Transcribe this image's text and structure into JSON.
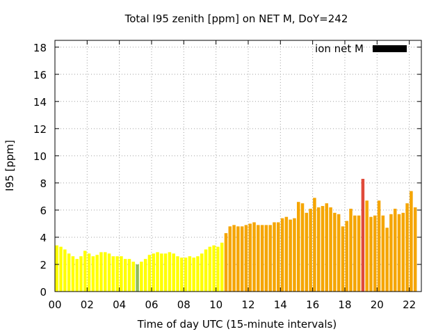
{
  "chart_data": {
    "type": "bar",
    "title": "Total I95 zenith [ppm] on NET M, DoY=242",
    "xlabel": "Time of day UTC (15-minute intervals)",
    "ylabel": "I95 [ppm]",
    "ylim": [
      0,
      18.5
    ],
    "xlim": [
      0,
      22.75
    ],
    "grid": true,
    "legend_position": "top-right",
    "x_ticks": [
      {
        "value": 0,
        "label": "00"
      },
      {
        "value": 2,
        "label": "02"
      },
      {
        "value": 4,
        "label": "04"
      },
      {
        "value": 6,
        "label": "06"
      },
      {
        "value": 8,
        "label": "08"
      },
      {
        "value": 10,
        "label": "10"
      },
      {
        "value": 12,
        "label": "12"
      },
      {
        "value": 14,
        "label": "14"
      },
      {
        "value": 16,
        "label": "16"
      },
      {
        "value": 18,
        "label": "18"
      },
      {
        "value": 20,
        "label": "20"
      },
      {
        "value": 22,
        "label": "22"
      }
    ],
    "y_ticks": [
      {
        "value": 0,
        "label": "0"
      },
      {
        "value": 2,
        "label": "2"
      },
      {
        "value": 4,
        "label": "4"
      },
      {
        "value": 6,
        "label": "6"
      },
      {
        "value": 8,
        "label": "8"
      },
      {
        "value": 10,
        "label": "10"
      },
      {
        "value": 12,
        "label": "12"
      },
      {
        "value": 14,
        "label": "14"
      },
      {
        "value": 16,
        "label": "16"
      },
      {
        "value": 18,
        "label": "18"
      }
    ],
    "interval_hours": 0.25,
    "series": [
      {
        "name": "ion net M",
        "legend_color": "#000000",
        "values": [
          3.4,
          3.3,
          3.1,
          2.8,
          2.6,
          2.4,
          2.6,
          3.0,
          2.8,
          2.6,
          2.7,
          2.9,
          2.9,
          2.8,
          2.6,
          2.6,
          2.6,
          2.4,
          2.4,
          2.2,
          2.0,
          2.2,
          2.4,
          2.7,
          2.8,
          2.9,
          2.8,
          2.8,
          2.9,
          2.8,
          2.6,
          2.5,
          2.5,
          2.6,
          2.5,
          2.6,
          2.8,
          3.1,
          3.3,
          3.4,
          3.3,
          3.6,
          4.3,
          4.8,
          4.9,
          4.8,
          4.8,
          4.9,
          5.0,
          5.1,
          4.9,
          4.9,
          4.9,
          4.9,
          5.1,
          5.1,
          5.4,
          5.5,
          5.3,
          5.4,
          6.6,
          6.5,
          5.8,
          6.1,
          6.9,
          6.2,
          6.3,
          6.5,
          6.2,
          5.8,
          5.7,
          4.8,
          5.2,
          6.1,
          5.6,
          5.6,
          8.3,
          6.7,
          5.5,
          5.6,
          6.7,
          5.6,
          4.7,
          5.7,
          6.1,
          5.7,
          5.8,
          6.5,
          7.4,
          6.2
        ],
        "colors": [
          "#ffff00",
          "#ffff00",
          "#ffff00",
          "#ffff00",
          "#ffff00",
          "#ffff00",
          "#ffff00",
          "#ffff00",
          "#ffff00",
          "#ffff00",
          "#ffff00",
          "#ffff00",
          "#ffff00",
          "#ffff00",
          "#ffff00",
          "#ffff00",
          "#ffff00",
          "#ffff00",
          "#ffff00",
          "#ffff00",
          "#8fbc5a",
          "#ffff00",
          "#ffff00",
          "#ffff00",
          "#ffff00",
          "#ffff00",
          "#ffff00",
          "#ffff00",
          "#ffff00",
          "#ffff00",
          "#ffff00",
          "#ffff00",
          "#ffff00",
          "#ffff00",
          "#ffff00",
          "#ffff00",
          "#ffff00",
          "#ffff00",
          "#ffff00",
          "#ffff00",
          "#ffff00",
          "#ffff00",
          "#f5a500",
          "#f5a500",
          "#f5a500",
          "#f5a500",
          "#f5a500",
          "#f5a500",
          "#f5a500",
          "#f5a500",
          "#f5a500",
          "#f5a500",
          "#f5a500",
          "#f5a500",
          "#f5a500",
          "#f5a500",
          "#f5a500",
          "#f5a500",
          "#f5a500",
          "#f5a500",
          "#f5a500",
          "#f5a500",
          "#f5a500",
          "#f5a500",
          "#f5a500",
          "#f5a500",
          "#f5a500",
          "#f5a500",
          "#f5a500",
          "#f5a500",
          "#f5a500",
          "#f5a500",
          "#f5a500",
          "#f5a500",
          "#f5a500",
          "#f5a500",
          "#e04a3a",
          "#f5a500",
          "#f5a500",
          "#f5a500",
          "#f5a500",
          "#f5a500",
          "#f5a500",
          "#f5a500",
          "#f5a500",
          "#f5a500",
          "#f5a500",
          "#f5a500",
          "#f5a500",
          "#f5a500"
        ]
      }
    ]
  }
}
